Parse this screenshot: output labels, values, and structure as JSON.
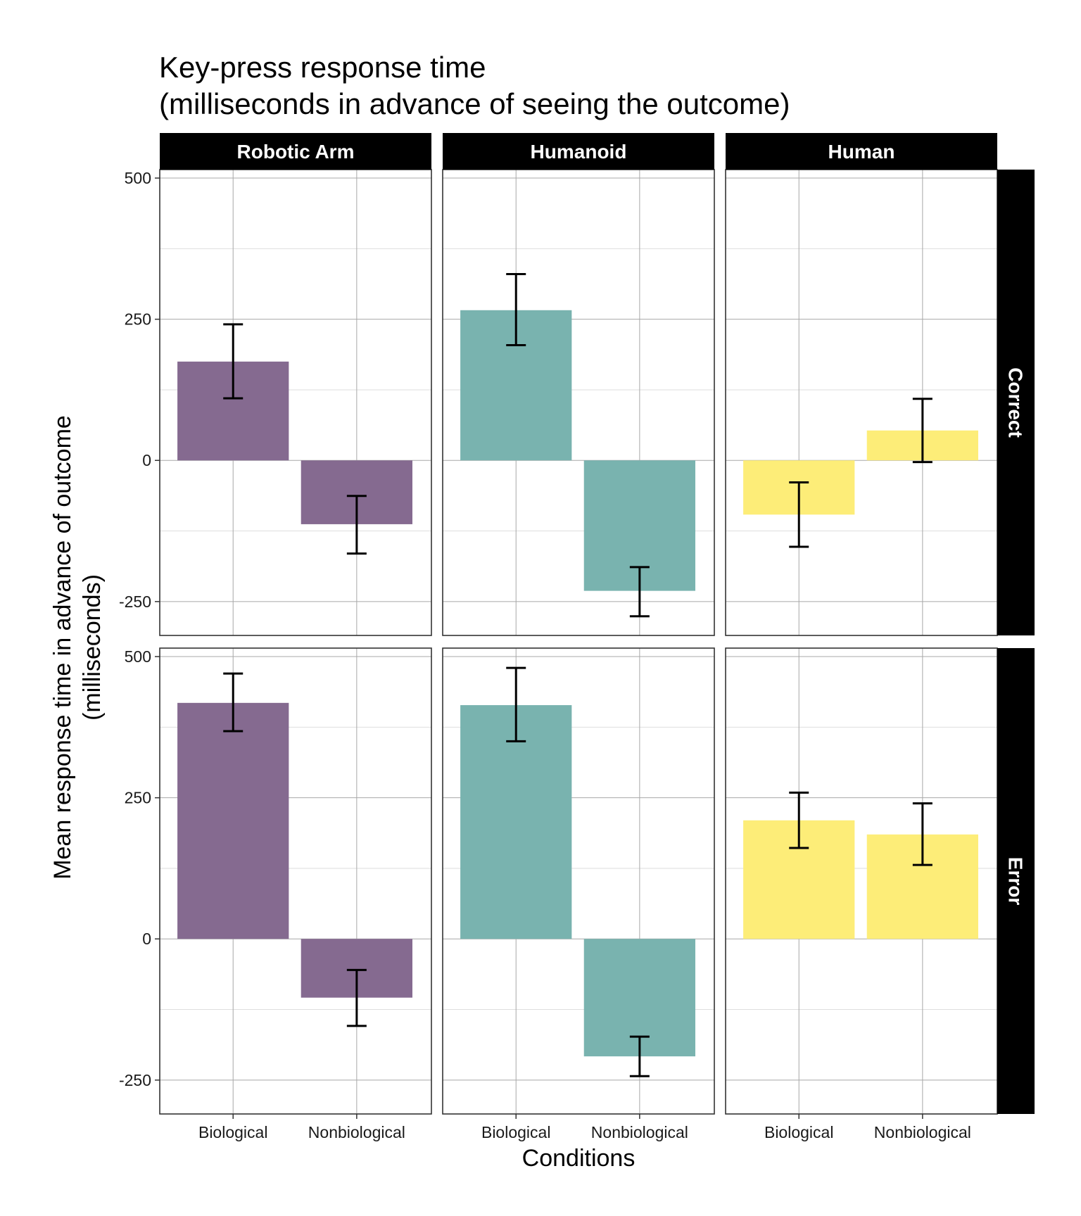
{
  "chart_data": {
    "type": "bar",
    "title": "Key-press response time",
    "subtitle": "(milliseconds in advance of seeing the outcome)",
    "xlabel": "Conditions",
    "ylabel_line1": "Mean response time in advance of outcome",
    "ylabel_line2": "(milliseconds)",
    "categories": [
      "Biological",
      "Nonbiological"
    ],
    "column_facets": [
      "Robotic Arm",
      "Humanoid",
      "Human"
    ],
    "row_facets": [
      "Correct",
      "Error"
    ],
    "ylim": [
      -310,
      515
    ],
    "yticks": [
      -250,
      0,
      250,
      500
    ],
    "tick_labels": [
      "-250",
      "0",
      "250",
      "500"
    ],
    "colors": {
      "Robotic Arm": "#856a90",
      "Humanoid": "#79b3af",
      "Human": "#fded78"
    },
    "grid": true,
    "panels": [
      {
        "row": "Correct",
        "col": "Robotic Arm",
        "values": [
          175,
          -113
        ],
        "lower": [
          110,
          -165
        ],
        "upper": [
          241,
          -63
        ]
      },
      {
        "row": "Correct",
        "col": "Humanoid",
        "values": [
          266,
          -231
        ],
        "lower": [
          204,
          -276
        ],
        "upper": [
          330,
          -189
        ]
      },
      {
        "row": "Correct",
        "col": "Human",
        "values": [
          -96,
          53
        ],
        "lower": [
          -153,
          -3
        ],
        "upper": [
          -39,
          109
        ]
      },
      {
        "row": "Error",
        "col": "Robotic Arm",
        "values": [
          418,
          -104
        ],
        "lower": [
          368,
          -154
        ],
        "upper": [
          470,
          -55
        ]
      },
      {
        "row": "Error",
        "col": "Humanoid",
        "values": [
          414,
          -208
        ],
        "lower": [
          350,
          -243
        ],
        "upper": [
          480,
          -173
        ]
      },
      {
        "row": "Error",
        "col": "Human",
        "values": [
          210,
          185
        ],
        "lower": [
          161,
          131
        ],
        "upper": [
          259,
          240
        ]
      }
    ]
  }
}
